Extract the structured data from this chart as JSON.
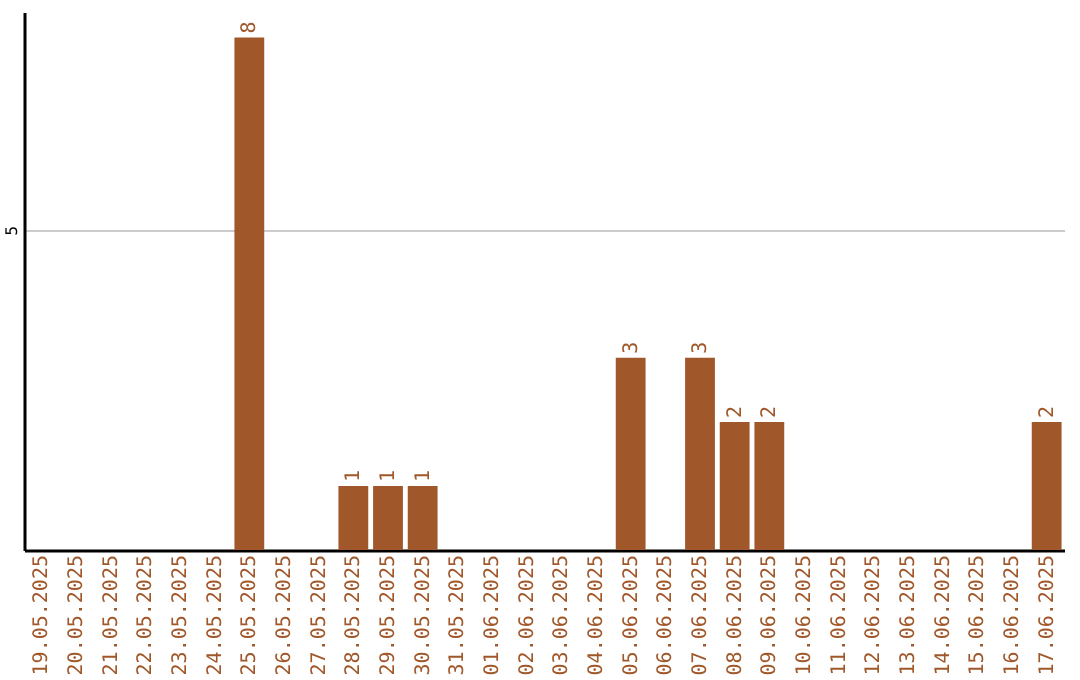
{
  "chart_data": {
    "type": "bar",
    "categories": [
      "19.05.2025",
      "20.05.2025",
      "21.05.2025",
      "22.05.2025",
      "23.05.2025",
      "24.05.2025",
      "25.05.2025",
      "26.05.2025",
      "27.05.2025",
      "28.05.2025",
      "29.05.2025",
      "30.05.2025",
      "31.05.2025",
      "01.06.2025",
      "02.06.2025",
      "03.06.2025",
      "04.06.2025",
      "05.06.2025",
      "06.06.2025",
      "07.06.2025",
      "08.06.2025",
      "09.06.2025",
      "10.06.2025",
      "11.06.2025",
      "12.06.2025",
      "13.06.2025",
      "14.06.2025",
      "15.06.2025",
      "16.06.2025",
      "17.06.2025"
    ],
    "values": [
      null,
      null,
      null,
      null,
      null,
      null,
      8,
      null,
      null,
      1,
      1,
      1,
      null,
      null,
      null,
      null,
      null,
      3,
      null,
      3,
      2,
      2,
      null,
      null,
      null,
      null,
      null,
      null,
      null,
      2
    ],
    "color": "#a0582a",
    "ylim": [
      0,
      8.4
    ],
    "yticks": [
      5
    ],
    "grid": "y",
    "data_labels": true
  }
}
